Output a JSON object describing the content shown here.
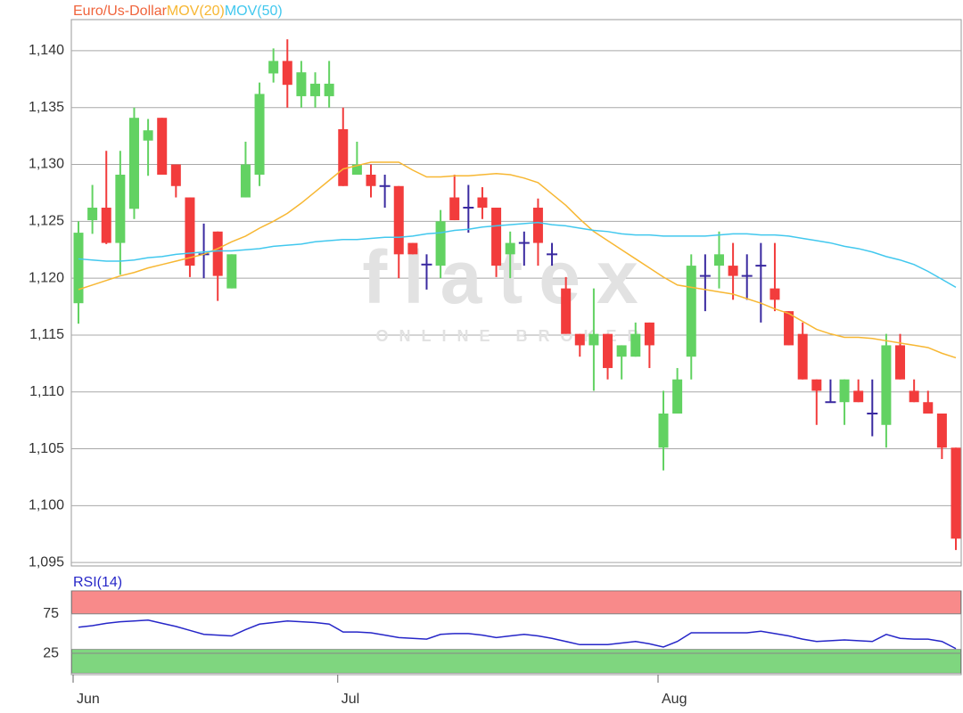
{
  "chart_data": [
    {
      "type": "candlestick",
      "categories": [
        "Jun",
        null,
        null,
        null,
        null,
        null,
        null,
        null,
        null,
        null,
        null,
        null,
        null,
        null,
        null,
        null,
        null,
        null,
        null,
        "Jul",
        null,
        null,
        null,
        null,
        null,
        null,
        null,
        null,
        null,
        null,
        null,
        null,
        null,
        null,
        null,
        null,
        null,
        null,
        null,
        null,
        null,
        null,
        "Aug",
        null,
        null,
        null,
        null,
        null,
        null,
        null,
        null,
        null,
        null,
        null,
        null,
        null,
        null,
        null,
        null,
        null,
        null,
        null,
        null,
        null
      ],
      "ohlc": {
        "name": "Euro/Us-Dollar",
        "color": "#f0643c",
        "up_color": "#62d262",
        "down_color": "#f23c3c",
        "doji_color": "#3a2aa0",
        "open": [
          1.1178,
          1.1251,
          1.1262,
          1.1231,
          1.1261,
          1.1321,
          1.1341,
          1.13,
          1.1271,
          1.1221,
          1.1241,
          1.1191,
          1.1271,
          1.1291,
          1.138,
          1.1391,
          1.136,
          1.136,
          1.136,
          1.1331,
          1.1291,
          1.1291,
          1.1281,
          1.1281,
          1.1231,
          1.1212,
          1.1211,
          1.1271,
          1.1262,
          1.1271,
          1.1262,
          1.1221,
          1.1231,
          1.1262,
          1.1221,
          1.1191,
          1.1151,
          1.1141,
          1.1151,
          1.1131,
          1.1131,
          1.1161,
          1.1051,
          1.1081,
          1.1131,
          1.1202,
          1.1211,
          1.1211,
          1.1202,
          1.1211,
          1.1191,
          1.1171,
          1.1151,
          1.1111,
          1.1091,
          1.1091,
          1.1101,
          1.1081,
          1.1071,
          1.1141,
          1.1101,
          1.1091,
          1.1081,
          1.1051
        ],
        "high": [
          1.125,
          1.1282,
          1.1312,
          1.1312,
          1.135,
          1.134,
          1.1341,
          1.13,
          1.1271,
          1.1248,
          1.1241,
          1.1221,
          1.132,
          1.1372,
          1.1402,
          1.141,
          1.1391,
          1.1381,
          1.1391,
          1.135,
          1.132,
          1.13,
          1.1291,
          1.1281,
          1.1231,
          1.1221,
          1.126,
          1.1291,
          1.1282,
          1.128,
          1.1262,
          1.1241,
          1.1241,
          1.127,
          1.1231,
          1.1201,
          1.1151,
          1.1191,
          1.1151,
          1.1141,
          1.1161,
          1.1161,
          1.1101,
          1.1121,
          1.1221,
          1.1221,
          1.1241,
          1.1231,
          1.1221,
          1.1231,
          1.1231,
          1.1171,
          1.1161,
          1.1111,
          1.1111,
          1.1111,
          1.1111,
          1.1111,
          1.1151,
          1.1151,
          1.1111,
          1.1101,
          1.1081,
          1.1051
        ],
        "low": [
          1.116,
          1.1239,
          1.123,
          1.1203,
          1.1252,
          1.129,
          1.1291,
          1.1271,
          1.1201,
          1.12,
          1.118,
          1.1191,
          1.1271,
          1.1281,
          1.1372,
          1.135,
          1.135,
          1.135,
          1.135,
          1.1281,
          1.1291,
          1.1271,
          1.1262,
          1.12,
          1.1221,
          1.119,
          1.12,
          1.1251,
          1.124,
          1.1252,
          1.1201,
          1.12,
          1.1211,
          1.1211,
          1.1211,
          1.1151,
          1.1131,
          1.1101,
          1.1111,
          1.1111,
          1.1131,
          1.1121,
          1.1031,
          1.1081,
          1.1111,
          1.1171,
          1.1191,
          1.1181,
          1.1181,
          1.1161,
          1.1171,
          1.1141,
          1.1111,
          1.1071,
          1.1091,
          1.1071,
          1.1091,
          1.1061,
          1.1051,
          1.1111,
          1.1091,
          1.1081,
          1.1041,
          1.0961
        ],
        "close": [
          1.124,
          1.1262,
          1.1231,
          1.1291,
          1.1341,
          1.133,
          1.1291,
          1.1281,
          1.1211,
          1.1221,
          1.1202,
          1.1221,
          1.13,
          1.1362,
          1.1391,
          1.137,
          1.1381,
          1.1371,
          1.1371,
          1.1281,
          1.13,
          1.1281,
          1.1281,
          1.1221,
          1.1221,
          1.1212,
          1.125,
          1.1251,
          1.1262,
          1.1262,
          1.1211,
          1.1231,
          1.1231,
          1.1231,
          1.1221,
          1.1151,
          1.1141,
          1.1151,
          1.1121,
          1.1141,
          1.1151,
          1.1141,
          1.1081,
          1.1111,
          1.1211,
          1.1202,
          1.1221,
          1.1202,
          1.1202,
          1.1211,
          1.1181,
          1.1141,
          1.1111,
          1.1101,
          1.1091,
          1.1111,
          1.1091,
          1.1081,
          1.1141,
          1.1111,
          1.1091,
          1.1081,
          1.1051,
          1.0971
        ]
      },
      "series": [
        {
          "name": "MOV(20)",
          "color": "#f7b733",
          "values": [
            1.119,
            1.1194,
            1.1198,
            1.1202,
            1.1205,
            1.1209,
            1.1212,
            1.1215,
            1.1218,
            1.1221,
            1.1226,
            1.1232,
            1.1237,
            1.1244,
            1.125,
            1.1257,
            1.1266,
            1.1276,
            1.1286,
            1.1296,
            1.1299,
            1.1302,
            1.1302,
            1.1302,
            1.1295,
            1.1289,
            1.1289,
            1.129,
            1.129,
            1.1291,
            1.1292,
            1.1291,
            1.1288,
            1.1284,
            1.1274,
            1.1264,
            1.1252,
            1.1241,
            1.1233,
            1.1225,
            1.1217,
            1.1209,
            1.1201,
            1.1194,
            1.1192,
            1.119,
            1.1188,
            1.1186,
            1.1182,
            1.1178,
            1.1173,
            1.1169,
            1.1162,
            1.1155,
            1.1151,
            1.1148,
            1.1148,
            1.1147,
            1.1145,
            1.1143,
            1.1141,
            1.1139,
            1.1134,
            1.113
          ]
        },
        {
          "name": "MOV(50)",
          "color": "#42c8ee",
          "values": [
            1.1217,
            1.1216,
            1.1215,
            1.1215,
            1.1216,
            1.1218,
            1.1219,
            1.1221,
            1.1222,
            1.1223,
            1.1224,
            1.1224,
            1.1225,
            1.1226,
            1.1228,
            1.1229,
            1.123,
            1.1232,
            1.1233,
            1.1234,
            1.1234,
            1.1235,
            1.1236,
            1.1236,
            1.1237,
            1.1239,
            1.124,
            1.1242,
            1.1243,
            1.1245,
            1.1246,
            1.1247,
            1.1248,
            1.1249,
            1.1247,
            1.1246,
            1.1244,
            1.1242,
            1.1241,
            1.1239,
            1.1238,
            1.1238,
            1.1237,
            1.1237,
            1.1237,
            1.1237,
            1.1238,
            1.1239,
            1.1239,
            1.1238,
            1.1238,
            1.1237,
            1.1235,
            1.1233,
            1.1231,
            1.1228,
            1.1226,
            1.1223,
            1.1219,
            1.1216,
            1.1212,
            1.1206,
            1.1199,
            1.1192
          ]
        }
      ],
      "ylim": [
        1.0947,
        1.1425
      ],
      "yticks": [
        {
          "value": 1.095,
          "label": "1,095"
        },
        {
          "value": 1.1,
          "label": "1,100"
        },
        {
          "value": 1.105,
          "label": "1,105"
        },
        {
          "value": 1.11,
          "label": "1,110"
        },
        {
          "value": 1.115,
          "label": "1,115"
        },
        {
          "value": 1.12,
          "label": "1,120"
        },
        {
          "value": 1.125,
          "label": "1,125"
        },
        {
          "value": 1.13,
          "label": "1,130"
        },
        {
          "value": 1.135,
          "label": "1,135"
        },
        {
          "value": 1.14,
          "label": "1,140"
        }
      ],
      "grid": true,
      "watermark": "flatex",
      "watermark_subtitle": "ONLINE BROKER"
    },
    {
      "type": "line",
      "series": [
        {
          "name": "RSI(14)",
          "color": "#2626c8",
          "values": [
            58,
            60,
            63,
            65,
            66,
            67,
            63,
            59,
            54,
            49,
            48,
            47,
            55,
            62,
            64,
            66,
            65,
            64,
            62,
            52,
            52,
            51,
            48,
            45,
            44,
            43,
            49,
            50,
            50,
            48,
            45,
            47,
            49,
            47,
            44,
            40,
            36,
            36,
            36,
            38,
            40,
            37,
            33,
            40,
            51,
            51,
            51,
            51,
            51,
            53,
            50,
            47,
            43,
            40,
            41,
            42,
            41,
            40,
            49,
            44,
            43,
            43,
            40,
            31
          ]
        }
      ],
      "ylim": [
        -2,
        104
      ],
      "yticks": [
        25,
        75
      ],
      "zones": [
        {
          "from": 75,
          "to": 104,
          "color": "#f88a8a"
        },
        {
          "from": 0,
          "to": 30,
          "color": "#7fd67f"
        }
      ],
      "grid": true
    }
  ]
}
